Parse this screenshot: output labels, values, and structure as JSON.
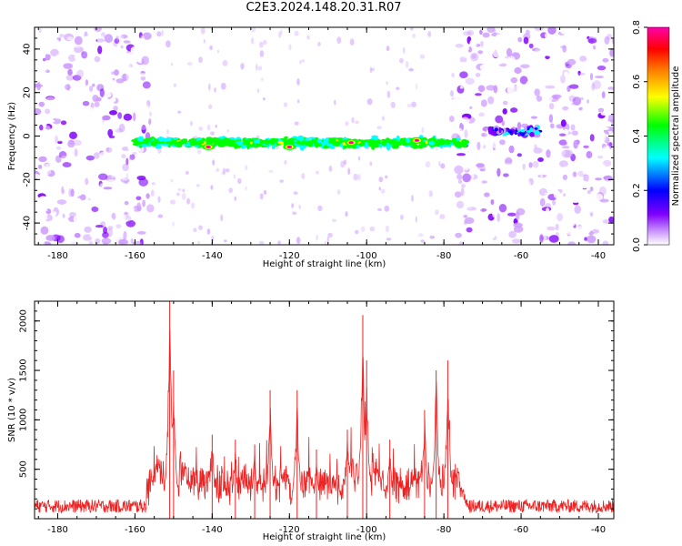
{
  "title": "C2E3.2024.148.20.31.R07",
  "chart_data": [
    {
      "type": "heatmap",
      "xlabel": "Height of straight line (km)",
      "ylabel": "Frequency (Hz)",
      "xlim": [
        -186,
        -36
      ],
      "ylim": [
        -50,
        50
      ],
      "xticks": [
        "-180",
        "-160",
        "-140",
        "-120",
        "-100",
        "-80",
        "-60",
        "-40"
      ],
      "yticks": [
        "-40",
        "-20",
        "0",
        "20",
        "40"
      ],
      "colorbar": {
        "label": "Normalized spectral amplitude",
        "range": [
          0.0,
          0.8
        ],
        "ticks": [
          "0.0",
          "0.2",
          "0.4",
          "0.6",
          "0.8"
        ],
        "colors": [
          "#ffffff",
          "#cc99ff",
          "#8000ff",
          "#0000ff",
          "#00ffff",
          "#00ff00",
          "#ffff00",
          "#ff8000",
          "#ff0000",
          "#ff00aa"
        ]
      },
      "band": {
        "freq_hz": -3,
        "x_start": -160,
        "x_end": -74
      },
      "secondary_band": {
        "freq_hz": 2,
        "x_start": -68,
        "x_end": -55
      },
      "peaks": [
        {
          "x": -141,
          "freq_hz": -5,
          "amplitude": 0.8
        },
        {
          "x": -120,
          "freq_hz": -5,
          "amplitude": 0.75
        },
        {
          "x": -104,
          "freq_hz": -3,
          "amplitude": 0.8
        },
        {
          "x": -87,
          "freq_hz": -2,
          "amplitude": 0.8
        }
      ],
      "noise_regions": [
        [
          -186,
          -156
        ],
        [
          -77,
          -36
        ]
      ]
    },
    {
      "type": "line",
      "xlabel": "Height of straight line (km)",
      "ylabel": "SNR (10 * v/v)",
      "xlim": [
        -186,
        -36
      ],
      "ylim": [
        0,
        2200
      ],
      "xticks": [
        "-180",
        "-160",
        "-140",
        "-120",
        "-100",
        "-80",
        "-60",
        "-40"
      ],
      "yticks": [
        "500",
        "1000",
        "1500",
        "2000"
      ],
      "series": [
        {
          "color": "#ee2222",
          "baseline": 150,
          "peaks": [
            {
              "x": -151,
              "y": 2200
            },
            {
              "x": -150,
              "y": 1500
            },
            {
              "x": -140,
              "y": 850
            },
            {
              "x": -134,
              "y": 800
            },
            {
              "x": -129,
              "y": 750
            },
            {
              "x": -125,
              "y": 1300
            },
            {
              "x": -118,
              "y": 1300
            },
            {
              "x": -113,
              "y": 700
            },
            {
              "x": -105,
              "y": 900
            },
            {
              "x": -101,
              "y": 2060
            },
            {
              "x": -100,
              "y": 1600
            },
            {
              "x": -94,
              "y": 800
            },
            {
              "x": -85,
              "y": 1100
            },
            {
              "x": -82,
              "y": 1500
            },
            {
              "x": -79,
              "y": 1600
            }
          ]
        }
      ]
    }
  ]
}
